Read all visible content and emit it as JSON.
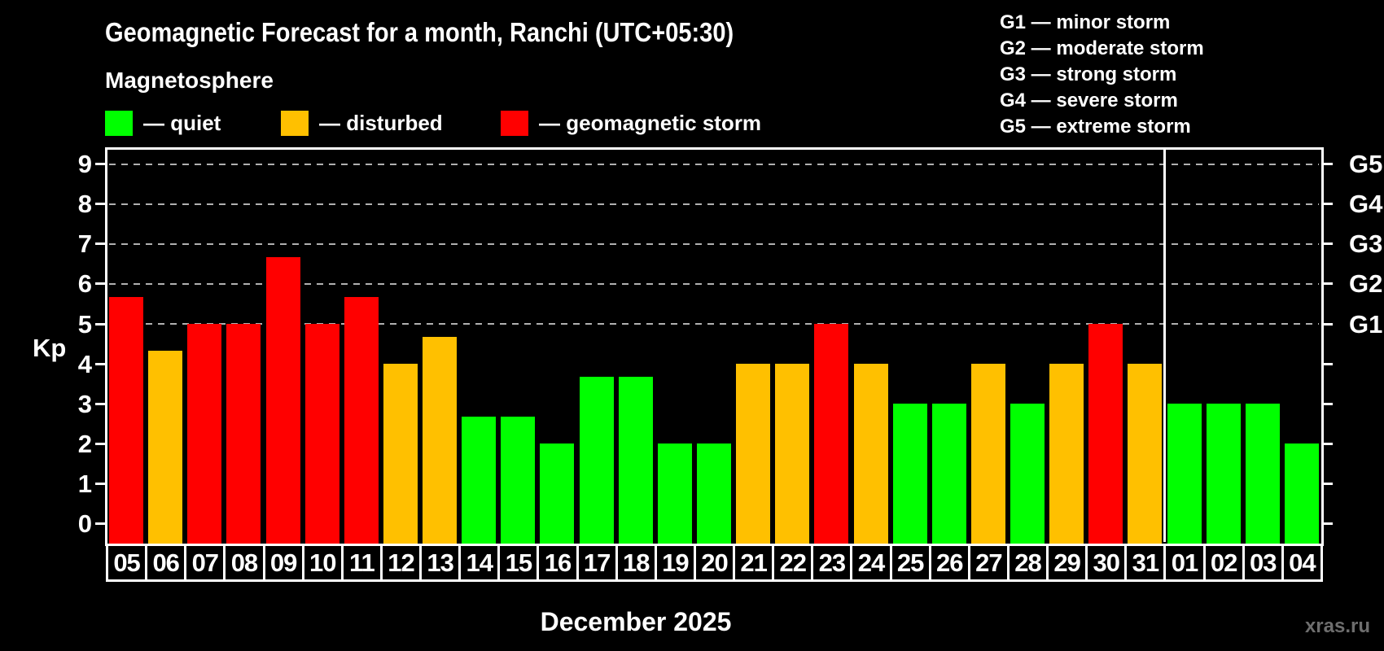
{
  "title": "Geomagnetic Forecast for a month, Ranchi (UTC+05:30)",
  "subtitle": "Magnetosphere",
  "bar_legend": [
    {
      "status": "quiet",
      "label": "— quiet",
      "color": "#00ff00"
    },
    {
      "status": "disturbed",
      "label": "— disturbed",
      "color": "#ffc000"
    },
    {
      "status": "storm",
      "label": "— geomagnetic storm",
      "color": "#ff0000"
    }
  ],
  "storm_scale_legend": [
    "G1 — minor storm",
    "G2 — moderate storm",
    "G3 — strong storm",
    "G4 — severe storm",
    "G5 — extreme storm"
  ],
  "chart_data": {
    "type": "bar",
    "title": "Geomagnetic Forecast for a month, Ranchi (UTC+05:30)",
    "ylabel": "Kp",
    "xlabel": "December 2025",
    "ylim": [
      -0.5,
      9.4
    ],
    "yticks": [
      0,
      1,
      2,
      3,
      4,
      5,
      6,
      7,
      8,
      9
    ],
    "gridlines": {
      "levels": [
        5,
        6,
        7,
        8,
        9
      ],
      "style": "dashed",
      "color": "#b0b0b0"
    },
    "right_axis": [
      {
        "level": 5,
        "label": "G1"
      },
      {
        "level": 6,
        "label": "G2"
      },
      {
        "level": 7,
        "label": "G3"
      },
      {
        "level": 8,
        "label": "G4"
      },
      {
        "level": 9,
        "label": "G5"
      }
    ],
    "categories": [
      "05",
      "06",
      "07",
      "08",
      "09",
      "10",
      "11",
      "12",
      "13",
      "14",
      "15",
      "16",
      "17",
      "18",
      "19",
      "20",
      "21",
      "22",
      "23",
      "24",
      "25",
      "26",
      "27",
      "28",
      "29",
      "30",
      "31",
      "01",
      "02",
      "03",
      "04"
    ],
    "values": [
      5.67,
      4.33,
      5,
      5,
      6.67,
      5,
      5.67,
      4,
      4.67,
      2.67,
      2.67,
      2,
      3.67,
      3.67,
      2,
      2,
      4,
      4,
      5,
      4,
      3,
      3,
      4,
      3,
      4,
      5,
      4,
      3,
      3,
      3,
      2
    ],
    "statuses": [
      "storm",
      "disturbed",
      "storm",
      "storm",
      "storm",
      "storm",
      "storm",
      "disturbed",
      "disturbed",
      "quiet",
      "quiet",
      "quiet",
      "quiet",
      "quiet",
      "quiet",
      "quiet",
      "disturbed",
      "disturbed",
      "storm",
      "disturbed",
      "quiet",
      "quiet",
      "disturbed",
      "quiet",
      "disturbed",
      "storm",
      "disturbed",
      "quiet",
      "quiet",
      "quiet",
      "quiet"
    ],
    "status_colors": {
      "quiet": "#00ff00",
      "disturbed": "#ffc000",
      "storm": "#ff0000"
    },
    "month_separator_after_index": 26,
    "legend_position": "top-left"
  },
  "footer": {
    "month_label": "December 2025",
    "watermark": "xras.ru"
  }
}
